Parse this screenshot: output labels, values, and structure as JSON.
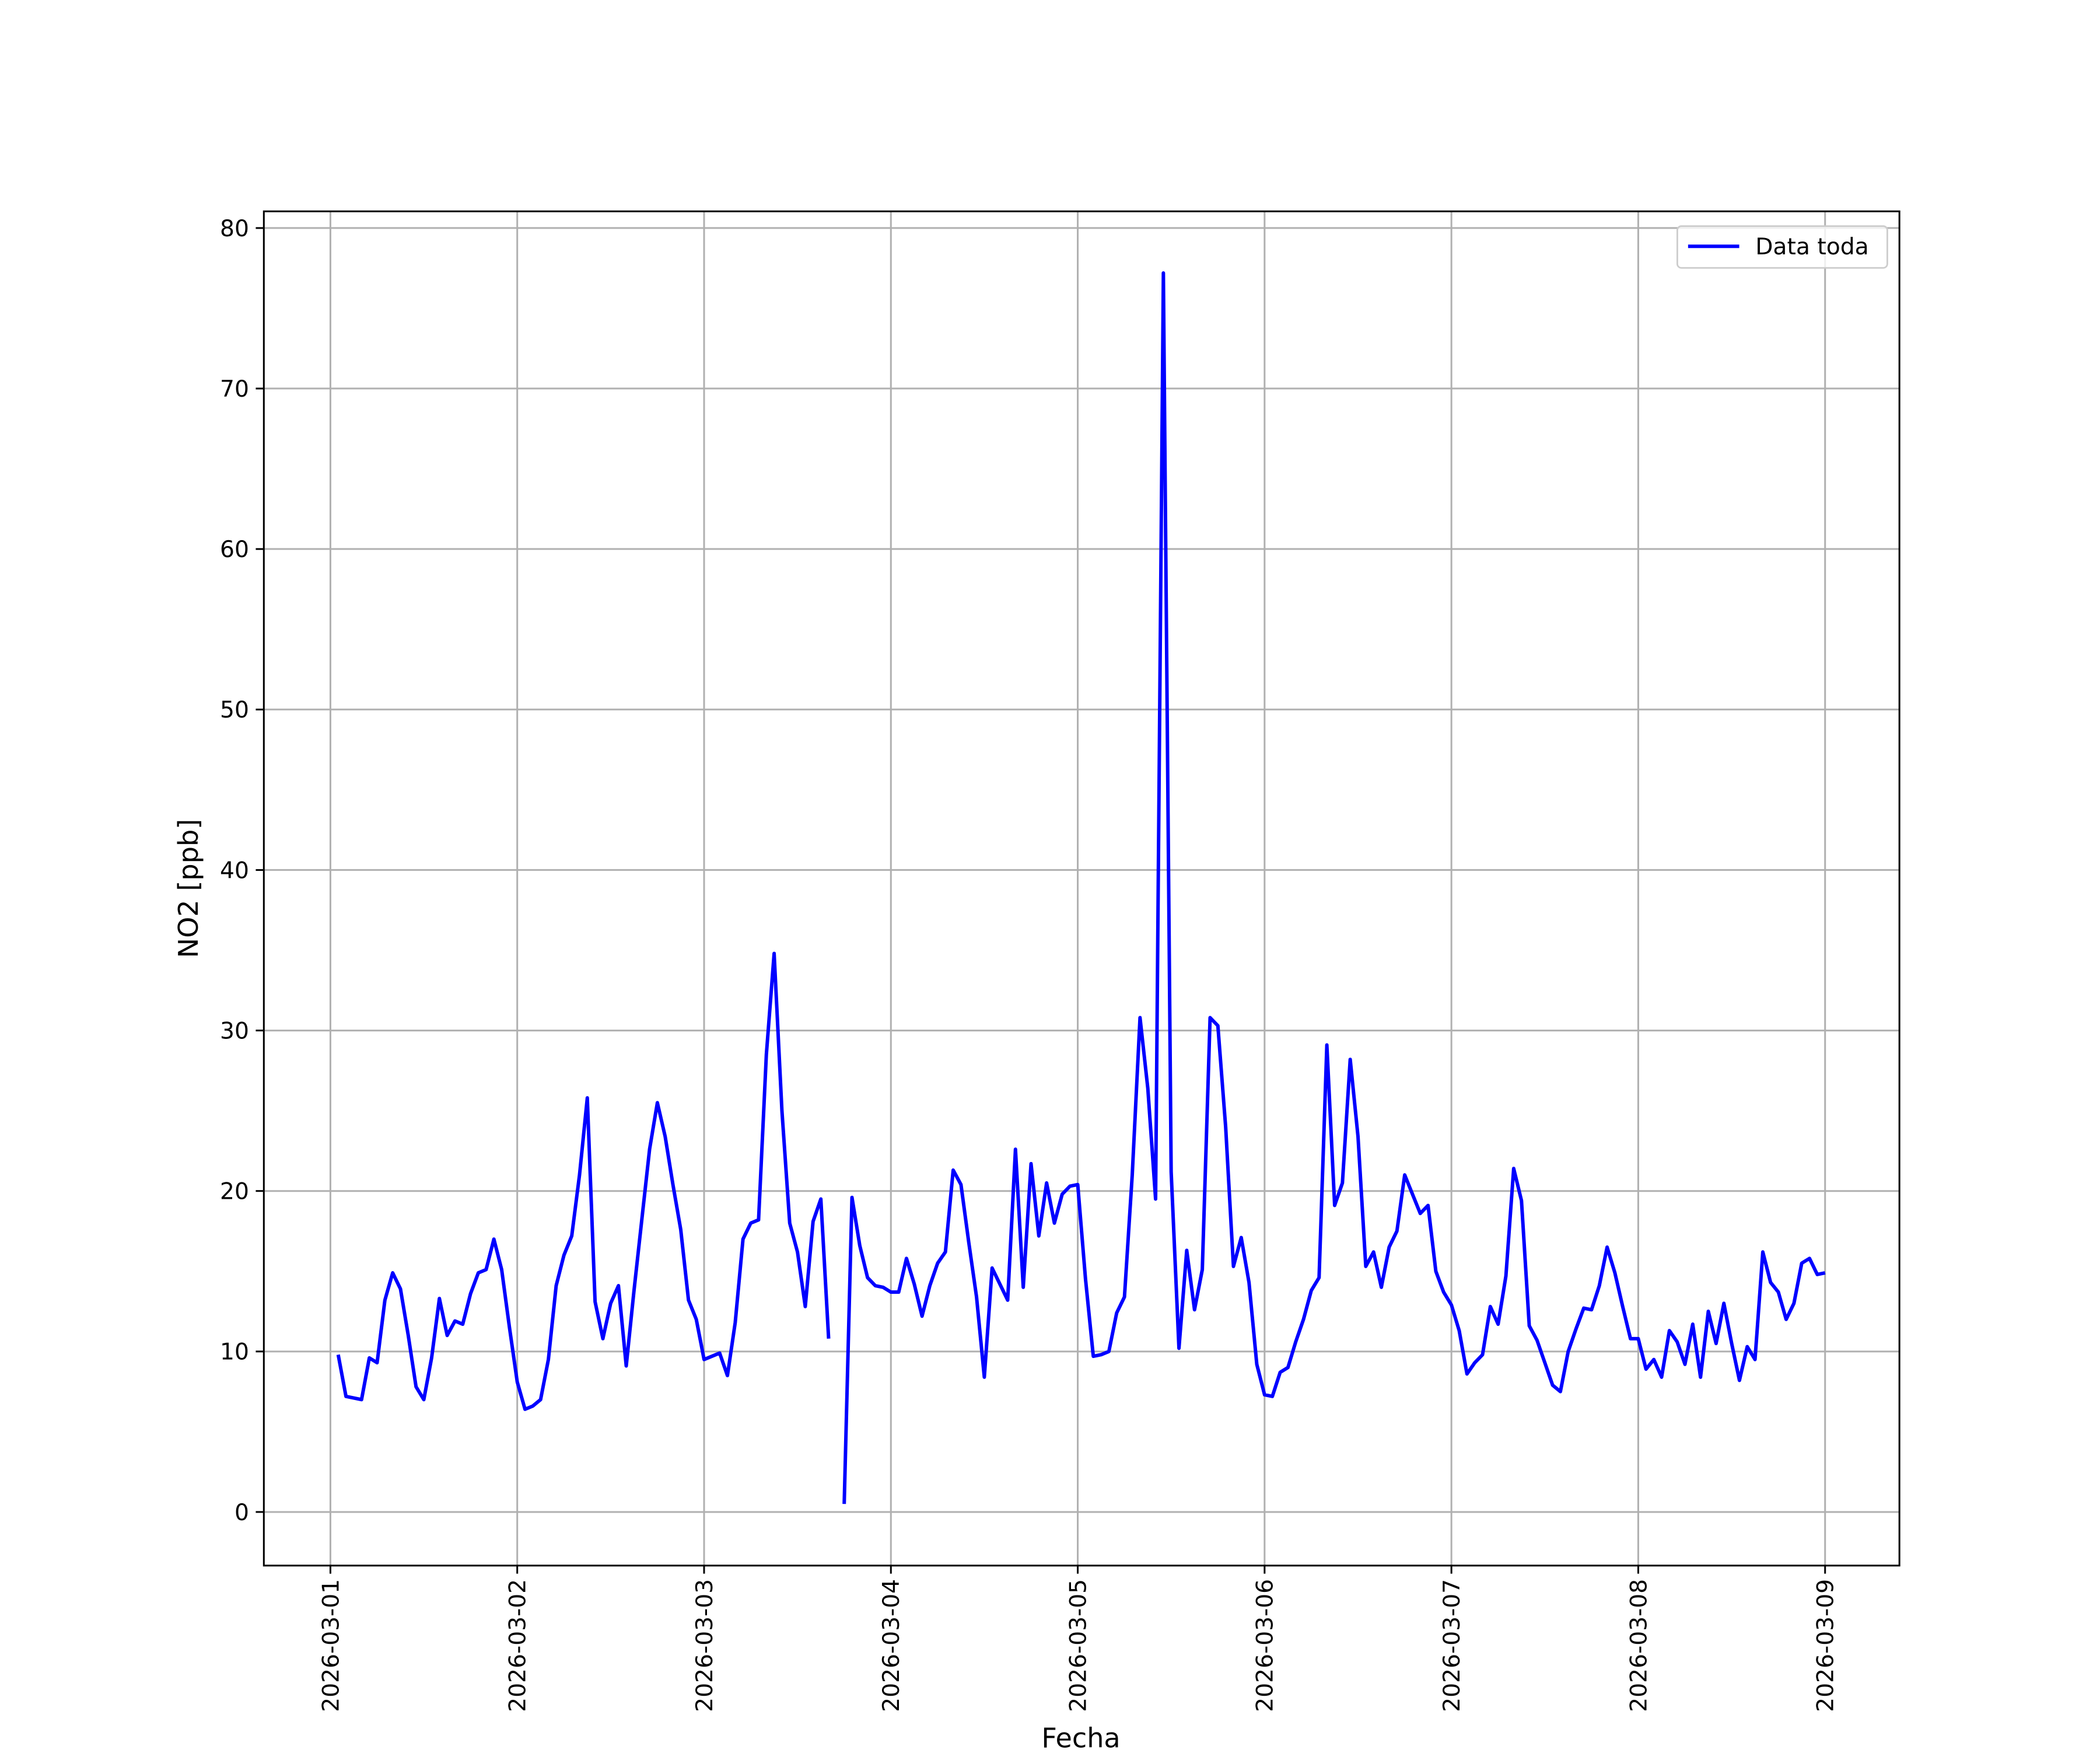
{
  "chart_data": {
    "type": "line",
    "xlabel": "Fecha",
    "ylabel": "NO2 [ppb]",
    "x": [
      "2026-03-01 01:00",
      "2026-03-01 02:00",
      "2026-03-01 03:00",
      "2026-03-01 04:00",
      "2026-03-01 05:00",
      "2026-03-01 06:00",
      "2026-03-01 07:00",
      "2026-03-01 08:00",
      "2026-03-01 09:00",
      "2026-03-01 10:00",
      "2026-03-01 11:00",
      "2026-03-01 12:00",
      "2026-03-01 13:00",
      "2026-03-01 14:00",
      "2026-03-01 15:00",
      "2026-03-01 16:00",
      "2026-03-01 17:00",
      "2026-03-01 18:00",
      "2026-03-01 19:00",
      "2026-03-01 20:00",
      "2026-03-01 21:00",
      "2026-03-01 22:00",
      "2026-03-01 23:00",
      "2026-03-02 00:00",
      "2026-03-02 01:00",
      "2026-03-02 02:00",
      "2026-03-02 03:00",
      "2026-03-02 04:00",
      "2026-03-02 05:00",
      "2026-03-02 06:00",
      "2026-03-02 07:00",
      "2026-03-02 08:00",
      "2026-03-02 09:00",
      "2026-03-02 10:00",
      "2026-03-02 11:00",
      "2026-03-02 12:00",
      "2026-03-02 13:00",
      "2026-03-02 14:00",
      "2026-03-02 15:00",
      "2026-03-02 16:00",
      "2026-03-02 17:00",
      "2026-03-02 18:00",
      "2026-03-02 19:00",
      "2026-03-02 20:00",
      "2026-03-02 21:00",
      "2026-03-02 22:00",
      "2026-03-02 23:00",
      "2026-03-03 00:00",
      "2026-03-03 01:00",
      "2026-03-03 02:00",
      "2026-03-03 03:00",
      "2026-03-03 04:00",
      "2026-03-03 05:00",
      "2026-03-03 06:00",
      "2026-03-03 07:00",
      "2026-03-03 08:00",
      "2026-03-03 09:00",
      "2026-03-03 10:00",
      "2026-03-03 11:00",
      "2026-03-03 12:00",
      "2026-03-03 13:00",
      "2026-03-03 14:00",
      "2026-03-03 15:00",
      "2026-03-03 16:00",
      "2026-03-03 17:00",
      "2026-03-03 18:00",
      "2026-03-03 19:00",
      "2026-03-03 20:00",
      "2026-03-03 21:00",
      "2026-03-03 22:00",
      "2026-03-03 23:00",
      "2026-03-04 00:00",
      "2026-03-04 01:00",
      "2026-03-04 02:00",
      "2026-03-04 03:00",
      "2026-03-04 04:00",
      "2026-03-04 05:00",
      "2026-03-04 06:00",
      "2026-03-04 07:00",
      "2026-03-04 08:00",
      "2026-03-04 09:00",
      "2026-03-04 10:00",
      "2026-03-04 11:00",
      "2026-03-04 12:00",
      "2026-03-04 13:00",
      "2026-03-04 14:00",
      "2026-03-04 15:00",
      "2026-03-04 16:00",
      "2026-03-04 17:00",
      "2026-03-04 18:00",
      "2026-03-04 19:00",
      "2026-03-04 20:00",
      "2026-03-04 21:00",
      "2026-03-04 22:00",
      "2026-03-04 23:00",
      "2026-03-05 00:00",
      "2026-03-05 01:00",
      "2026-03-05 02:00",
      "2026-03-05 03:00",
      "2026-03-05 04:00",
      "2026-03-05 05:00",
      "2026-03-05 06:00",
      "2026-03-05 07:00",
      "2026-03-05 08:00",
      "2026-03-05 09:00",
      "2026-03-05 10:00",
      "2026-03-05 11:00",
      "2026-03-05 12:00",
      "2026-03-05 13:00",
      "2026-03-05 14:00",
      "2026-03-05 15:00",
      "2026-03-05 16:00",
      "2026-03-05 17:00",
      "2026-03-05 18:00",
      "2026-03-05 19:00",
      "2026-03-05 20:00",
      "2026-03-05 21:00",
      "2026-03-05 22:00",
      "2026-03-05 23:00",
      "2026-03-06 00:00",
      "2026-03-06 01:00",
      "2026-03-06 02:00",
      "2026-03-06 03:00",
      "2026-03-06 04:00",
      "2026-03-06 05:00",
      "2026-03-06 06:00",
      "2026-03-06 07:00",
      "2026-03-06 08:00",
      "2026-03-06 09:00",
      "2026-03-06 10:00",
      "2026-03-06 11:00",
      "2026-03-06 12:00",
      "2026-03-06 13:00",
      "2026-03-06 14:00",
      "2026-03-06 15:00",
      "2026-03-06 16:00",
      "2026-03-06 17:00",
      "2026-03-06 18:00",
      "2026-03-06 19:00",
      "2026-03-06 20:00",
      "2026-03-06 21:00",
      "2026-03-06 22:00",
      "2026-03-06 23:00",
      "2026-03-07 00:00",
      "2026-03-07 01:00",
      "2026-03-07 02:00",
      "2026-03-07 03:00",
      "2026-03-07 04:00",
      "2026-03-07 05:00",
      "2026-03-07 06:00",
      "2026-03-07 07:00",
      "2026-03-07 08:00",
      "2026-03-07 09:00",
      "2026-03-07 10:00",
      "2026-03-07 11:00",
      "2026-03-07 12:00",
      "2026-03-07 13:00",
      "2026-03-07 14:00",
      "2026-03-07 15:00",
      "2026-03-07 16:00",
      "2026-03-07 17:00",
      "2026-03-07 18:00",
      "2026-03-07 19:00",
      "2026-03-07 20:00",
      "2026-03-07 21:00",
      "2026-03-07 22:00",
      "2026-03-07 23:00",
      "2026-03-08 00:00",
      "2026-03-08 01:00",
      "2026-03-08 02:00",
      "2026-03-08 03:00",
      "2026-03-08 04:00",
      "2026-03-08 05:00",
      "2026-03-08 06:00",
      "2026-03-08 07:00",
      "2026-03-08 08:00",
      "2026-03-08 09:00",
      "2026-03-08 10:00",
      "2026-03-08 11:00",
      "2026-03-08 12:00",
      "2026-03-08 13:00",
      "2026-03-08 14:00",
      "2026-03-08 15:00",
      "2026-03-08 16:00",
      "2026-03-08 17:00",
      "2026-03-08 18:00",
      "2026-03-08 19:00",
      "2026-03-08 20:00",
      "2026-03-08 21:00",
      "2026-03-08 22:00",
      "2026-03-08 23:00",
      "2026-03-09 00:00"
    ],
    "series": [
      {
        "name": "Data toda",
        "color": "#0000ff",
        "values": [
          9.8,
          7.2,
          7.1,
          7.0,
          9.6,
          9.3,
          13.2,
          14.9,
          13.9,
          11.0,
          7.8,
          7.0,
          9.6,
          13.3,
          11.0,
          11.9,
          11.7,
          13.6,
          14.9,
          15.1,
          17.0,
          15.1,
          11.5,
          8.1,
          6.4,
          6.6,
          7.0,
          9.5,
          14.1,
          16.0,
          17.2,
          21.0,
          25.8,
          13.1,
          10.8,
          13.0,
          14.1,
          9.1,
          13.8,
          18.2,
          22.6,
          25.5,
          23.4,
          20.4,
          17.6,
          13.2,
          12.0,
          9.5,
          9.7,
          9.9,
          8.5,
          11.8,
          17.0,
          18.0,
          18.2,
          28.5,
          34.8,
          25.0,
          18.0,
          16.2,
          12.8,
          18.1,
          19.5,
          10.8,
          null,
          0.5,
          19.6,
          16.6,
          14.6,
          14.1,
          14.0,
          13.7,
          13.7,
          15.8,
          14.2,
          12.2,
          14.1,
          15.5,
          16.2,
          21.3,
          20.4,
          16.8,
          13.4,
          8.4,
          15.2,
          14.2,
          13.2,
          22.6,
          14.0,
          21.7,
          17.2,
          20.5,
          18.0,
          19.8,
          20.3,
          20.4,
          14.5,
          9.7,
          9.8,
          10.0,
          12.4,
          13.4,
          21.0,
          30.8,
          26.4,
          19.5,
          77.2,
          21.2,
          10.2,
          16.3,
          12.6,
          15.1,
          30.8,
          30.3,
          24.0,
          15.3,
          17.1,
          14.3,
          9.2,
          7.3,
          7.2,
          8.7,
          9.0,
          10.6,
          12.0,
          13.8,
          14.6,
          29.1,
          19.1,
          20.5,
          28.2,
          23.4,
          15.3,
          16.2,
          14.0,
          16.5,
          17.5,
          21.0,
          19.8,
          18.6,
          19.1,
          15.0,
          13.7,
          12.9,
          11.3,
          8.6,
          9.3,
          9.8,
          12.8,
          11.7,
          14.7,
          21.4,
          19.4,
          11.6,
          10.7,
          9.3,
          7.9,
          7.5,
          10.0,
          11.4,
          12.7,
          12.6,
          14.1,
          16.5,
          14.9,
          12.8,
          10.8,
          10.8,
          8.9,
          9.5,
          8.4,
          11.3,
          10.6,
          9.2,
          11.7,
          8.4,
          12.5,
          10.5,
          13.0,
          10.5,
          8.2,
          10.3,
          9.5,
          16.2,
          14.3,
          13.7,
          12.0,
          13.0,
          15.5,
          15.8,
          14.8,
          14.9
        ]
      }
    ],
    "xlim": [
      "2026-02-28 15:27",
      "2026-03-09 09:33"
    ],
    "xticks": [
      "2026-03-01",
      "2026-03-02",
      "2026-03-03",
      "2026-03-04",
      "2026-03-05",
      "2026-03-06",
      "2026-03-07",
      "2026-03-08",
      "2026-03-09"
    ],
    "ylim": [
      -3.34,
      81.04
    ],
    "yticks": [
      0,
      10,
      20,
      30,
      40,
      50,
      60,
      70,
      80
    ],
    "grid": true,
    "legend": "upper right"
  }
}
